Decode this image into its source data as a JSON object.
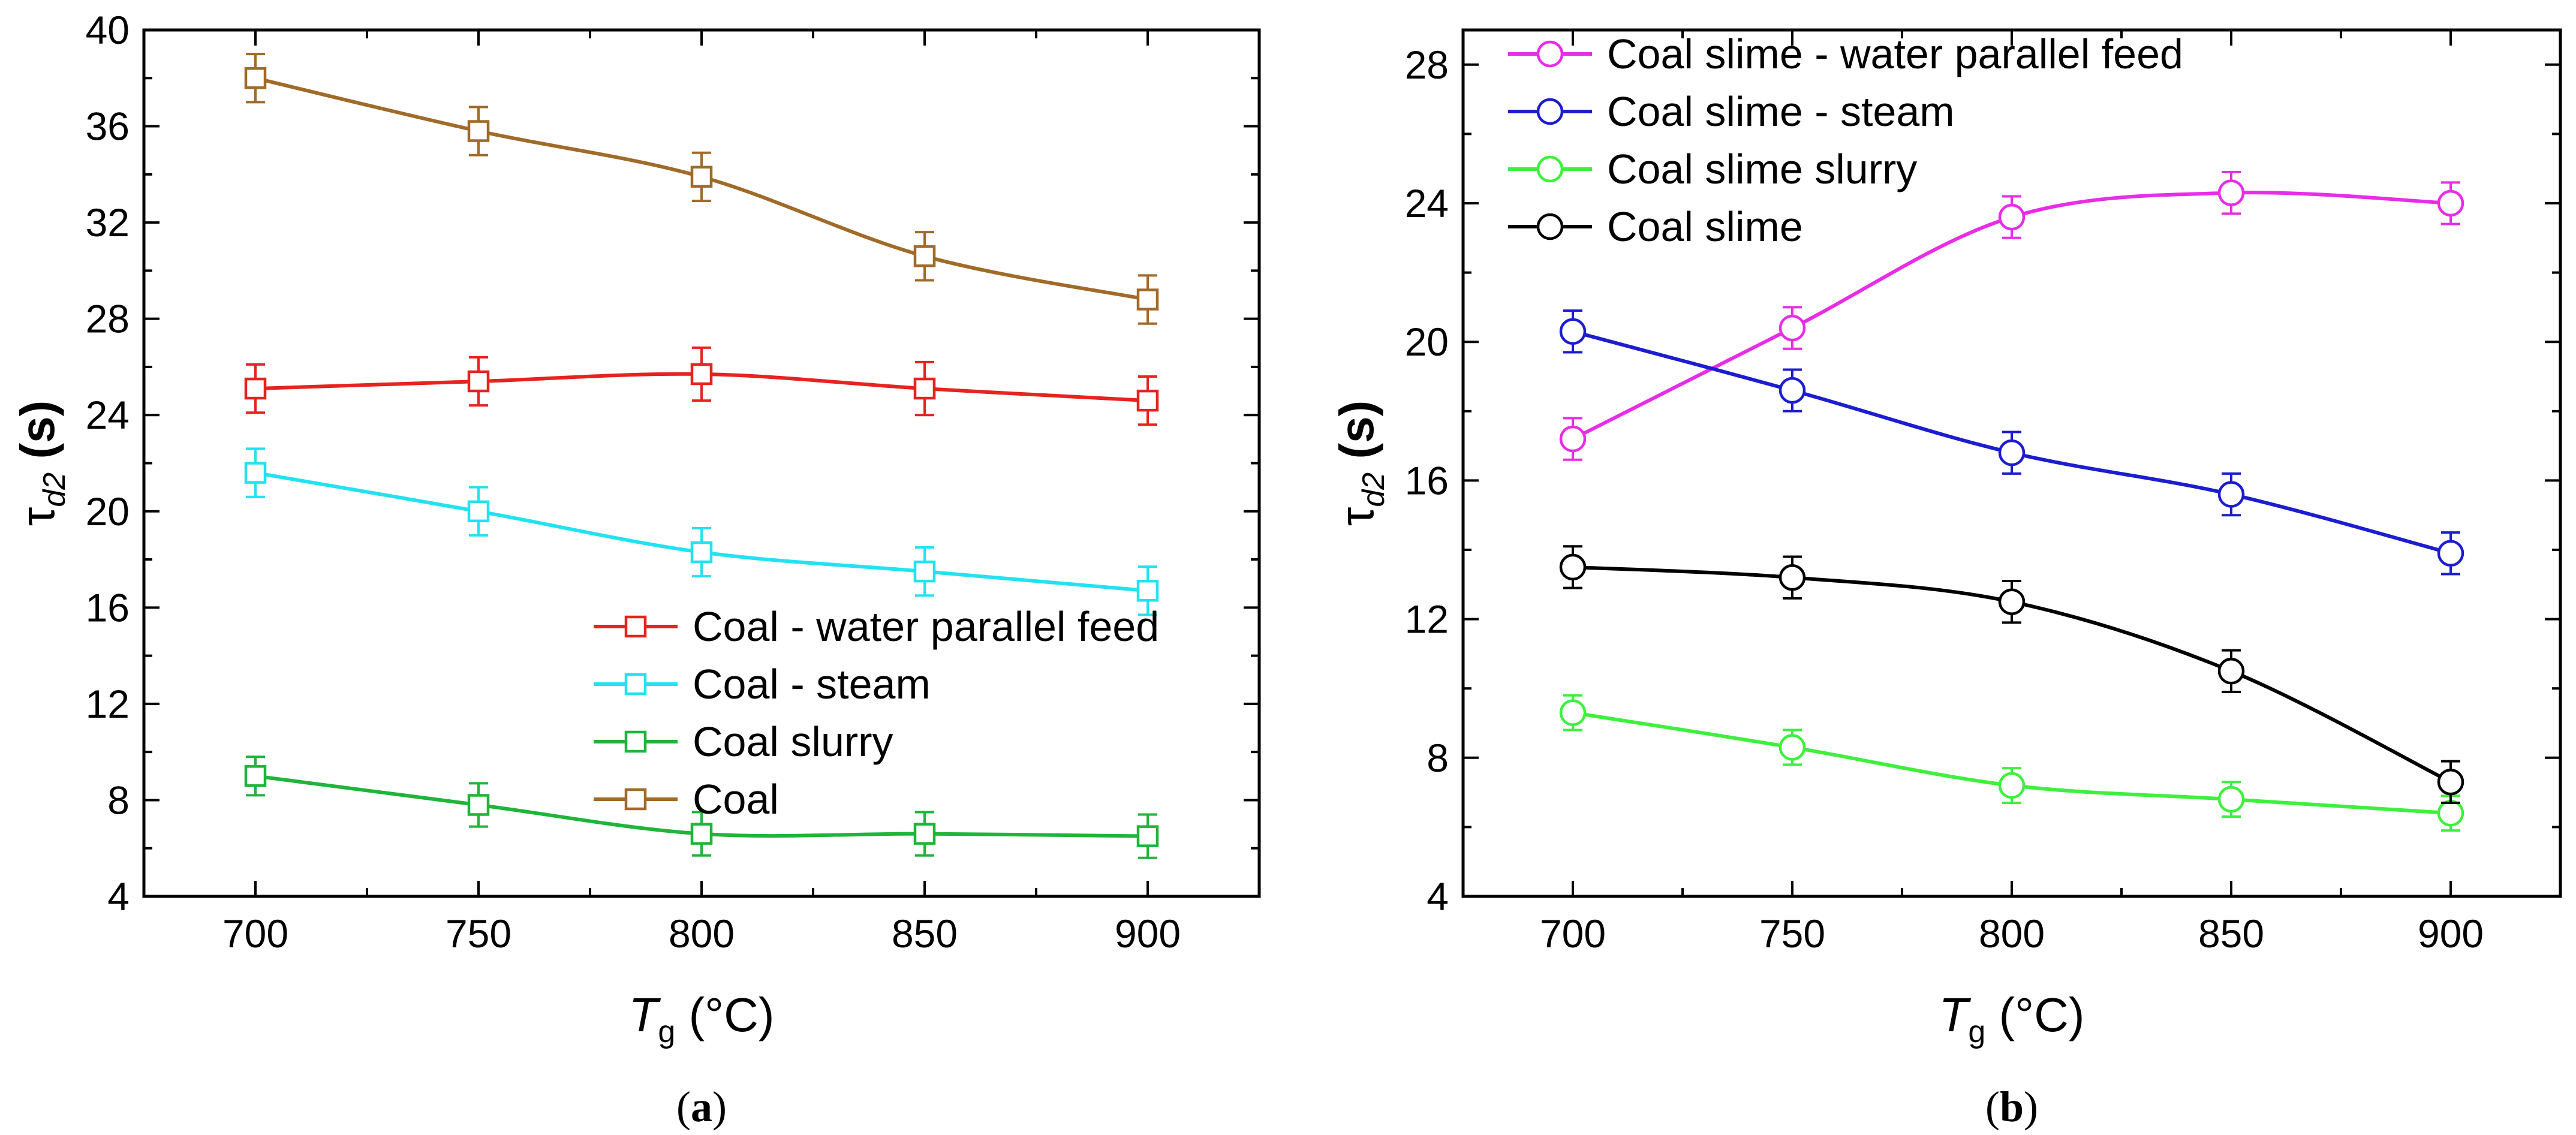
{
  "chart_data": [
    {
      "type": "line",
      "panel_label": "(a)",
      "panel_letter": "a",
      "marker": "square",
      "xlabel_main": "T",
      "xlabel_sub": "g",
      "xlabel_unit": " (°C)",
      "ylabel_main": "τ",
      "ylabel_sub": "d2",
      "ylabel_unit": " (s)",
      "xlim": [
        675,
        925
      ],
      "ylim": [
        4,
        40
      ],
      "xticks": [
        700,
        750,
        800,
        850,
        900
      ],
      "yticks": [
        4,
        8,
        12,
        16,
        20,
        24,
        28,
        32,
        36,
        40
      ],
      "legend_position": "bottom-right",
      "x": [
        700,
        750,
        800,
        850,
        900
      ],
      "series": [
        {
          "name": "Coal - water parallel feed",
          "color": "#e8221f",
          "values": [
            25.1,
            25.4,
            25.7,
            25.1,
            24.6
          ],
          "errors": [
            1.0,
            1.0,
            1.1,
            1.1,
            1.0
          ]
        },
        {
          "name": "Coal - steam",
          "color": "#22e2f2",
          "values": [
            21.6,
            20.0,
            18.3,
            17.5,
            16.7
          ],
          "errors": [
            1.0,
            1.0,
            1.0,
            1.0,
            1.0
          ]
        },
        {
          "name": "Coal slurry",
          "color": "#1eb53a",
          "values": [
            9.0,
            7.8,
            6.6,
            6.6,
            6.5
          ],
          "errors": [
            0.8,
            0.9,
            0.9,
            0.9,
            0.9
          ]
        },
        {
          "name": "Coal",
          "color": "#a06a28",
          "values": [
            38.0,
            35.8,
            33.9,
            30.6,
            28.8
          ],
          "errors": [
            1.0,
            1.0,
            1.0,
            1.0,
            1.0
          ]
        }
      ]
    },
    {
      "type": "line",
      "panel_label": "(b)",
      "panel_letter": "b",
      "marker": "circle",
      "xlabel_main": "T",
      "xlabel_sub": "g",
      "xlabel_unit": " (°C)",
      "ylabel_main": "τ",
      "ylabel_sub": "d2",
      "ylabel_unit": " (s)",
      "xlim": [
        675,
        925
      ],
      "ylim": [
        4,
        29
      ],
      "xticks": [
        700,
        750,
        800,
        850,
        900
      ],
      "yticks": [
        4,
        8,
        12,
        16,
        20,
        24,
        28
      ],
      "legend_position": "top-left",
      "x": [
        700,
        750,
        800,
        850,
        900
      ],
      "series": [
        {
          "name": "Coal slime - water parallel feed",
          "color": "#e82ce8",
          "values": [
            17.2,
            20.4,
            23.6,
            24.3,
            24.0
          ],
          "errors": [
            0.6,
            0.6,
            0.6,
            0.6,
            0.6
          ]
        },
        {
          "name": "Coal slime - steam",
          "color": "#1c1cd0",
          "values": [
            20.3,
            18.6,
            16.8,
            15.6,
            13.9
          ],
          "errors": [
            0.6,
            0.6,
            0.6,
            0.6,
            0.6
          ]
        },
        {
          "name": "Coal slime slurry",
          "color": "#3ef03e",
          "values": [
            9.3,
            8.3,
            7.2,
            6.8,
            6.4
          ],
          "errors": [
            0.5,
            0.5,
            0.5,
            0.5,
            0.5
          ]
        },
        {
          "name": "Coal slime",
          "color": "#000000",
          "values": [
            13.5,
            13.2,
            12.5,
            10.5,
            7.3
          ],
          "errors": [
            0.6,
            0.6,
            0.6,
            0.6,
            0.6
          ]
        }
      ]
    }
  ]
}
